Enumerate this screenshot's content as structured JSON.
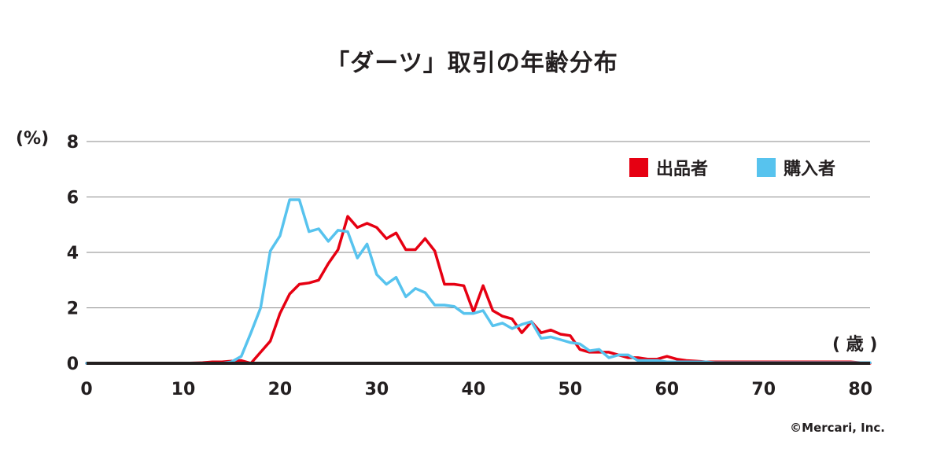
{
  "chart_data": {
    "type": "line",
    "title": "「ダーツ」取引の年齢分布",
    "ylabel": "(%)",
    "xlabel": "( 歳 )",
    "xlim": [
      0,
      81
    ],
    "ylim": [
      0,
      8
    ],
    "x_ticks": [
      0,
      10,
      20,
      30,
      40,
      50,
      60,
      70,
      80
    ],
    "y_ticks": [
      0,
      2,
      4,
      6,
      8
    ],
    "grid": true,
    "legend_position": "top-right",
    "series": [
      {
        "name": "出品者",
        "color": "#e60012",
        "x": [
          0,
          5,
          10,
          12,
          13,
          14,
          15,
          16,
          17,
          18,
          19,
          20,
          21,
          22,
          23,
          24,
          25,
          26,
          27,
          28,
          29,
          30,
          31,
          32,
          33,
          34,
          35,
          36,
          37,
          38,
          39,
          40,
          41,
          42,
          43,
          44,
          45,
          46,
          47,
          48,
          49,
          50,
          51,
          52,
          53,
          54,
          55,
          56,
          57,
          58,
          59,
          60,
          61,
          62,
          63,
          64,
          65,
          66,
          67,
          68,
          69,
          70,
          71,
          72,
          73,
          74,
          75,
          76,
          77,
          78,
          79,
          80,
          81
        ],
        "values": [
          0,
          0,
          0,
          0.02,
          0.05,
          0.05,
          0.08,
          0.1,
          0,
          0.4,
          0.8,
          1.8,
          2.5,
          2.85,
          2.9,
          3.0,
          3.6,
          4.1,
          5.3,
          4.9,
          5.05,
          4.9,
          4.5,
          4.7,
          4.1,
          4.1,
          4.5,
          4.05,
          2.85,
          2.85,
          2.8,
          1.85,
          2.8,
          1.9,
          1.7,
          1.6,
          1.1,
          1.5,
          1.1,
          1.2,
          1.05,
          1.0,
          0.5,
          0.4,
          0.4,
          0.4,
          0.3,
          0.2,
          0.2,
          0.15,
          0.15,
          0.25,
          0.15,
          0.1,
          0.08,
          0.05,
          0.05,
          0.05,
          0.05,
          0.05,
          0.05,
          0.05,
          0.05,
          0.05,
          0.05,
          0.05,
          0.05,
          0.05,
          0.05,
          0.05,
          0.05,
          0.02,
          0
        ]
      },
      {
        "name": "購入者",
        "color": "#57c3ee",
        "x": [
          0,
          5,
          10,
          13,
          14,
          15,
          16,
          17,
          18,
          19,
          20,
          21,
          22,
          23,
          24,
          25,
          26,
          27,
          28,
          29,
          30,
          31,
          32,
          33,
          34,
          35,
          36,
          37,
          38,
          39,
          40,
          41,
          42,
          43,
          44,
          45,
          46,
          47,
          48,
          49,
          50,
          51,
          52,
          53,
          54,
          55,
          56,
          57,
          58,
          59,
          60,
          61,
          62,
          63,
          64,
          65,
          66,
          67,
          68,
          69,
          70,
          71,
          72,
          73,
          74,
          75,
          76,
          77,
          78,
          79,
          80,
          81
        ],
        "values": [
          0,
          0,
          0,
          0,
          0,
          0.05,
          0.25,
          1.1,
          2.0,
          4.05,
          4.6,
          5.9,
          5.9,
          4.75,
          4.85,
          4.4,
          4.8,
          4.75,
          3.8,
          4.3,
          3.2,
          2.85,
          3.1,
          2.4,
          2.7,
          2.55,
          2.1,
          2.1,
          2.05,
          1.8,
          1.8,
          1.9,
          1.35,
          1.45,
          1.25,
          1.4,
          1.5,
          0.9,
          0.95,
          0.85,
          0.75,
          0.7,
          0.45,
          0.5,
          0.2,
          0.3,
          0.3,
          0.1,
          0.1,
          0.1,
          0.05,
          0.05,
          0.05,
          0.05,
          0.05,
          0.02,
          0.02,
          0.02,
          0.02,
          0.02,
          0.02,
          0.02,
          0.02,
          0.02,
          0.02,
          0.02,
          0.02,
          0.02,
          0.02,
          0.02,
          0.02,
          0.02
        ]
      }
    ]
  },
  "copyright": "©Mercari, Inc."
}
